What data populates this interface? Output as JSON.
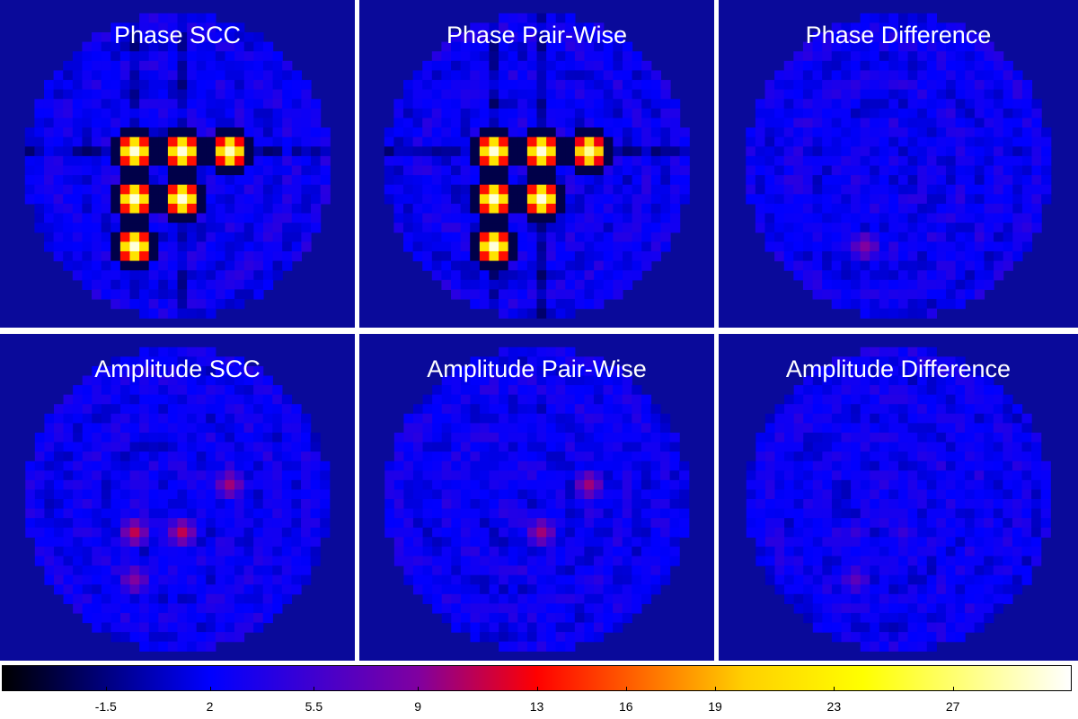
{
  "chart_data": {
    "type": "heatmap",
    "panels": [
      {
        "title": "Phase SCC",
        "row": 0,
        "col": 0,
        "hot_spots": [
          {
            "gx": 11,
            "gy": 14,
            "v": 30
          },
          {
            "gx": 16,
            "gy": 14,
            "v": 30
          },
          {
            "gx": 21,
            "gy": 14,
            "v": 29
          },
          {
            "gx": 11,
            "gy": 19,
            "v": 30
          },
          {
            "gx": 16,
            "gy": 19,
            "v": 30
          },
          {
            "gx": 11,
            "gy": 24,
            "v": 30
          }
        ],
        "dark_bands": true
      },
      {
        "title": "Phase Pair-Wise",
        "row": 0,
        "col": 1,
        "hot_spots": [
          {
            "gx": 11,
            "gy": 14,
            "v": 30
          },
          {
            "gx": 16,
            "gy": 14,
            "v": 30
          },
          {
            "gx": 21,
            "gy": 14,
            "v": 28
          },
          {
            "gx": 11,
            "gy": 19,
            "v": 30
          },
          {
            "gx": 16,
            "gy": 19,
            "v": 30
          },
          {
            "gx": 11,
            "gy": 24,
            "v": 30
          }
        ],
        "dark_bands": true
      },
      {
        "title": "Phase Difference",
        "row": 0,
        "col": 2,
        "hot_spots": [
          {
            "gx": 12,
            "gy": 24,
            "v": 9
          }
        ],
        "dark_bands": false
      },
      {
        "title": "Amplitude SCC",
        "row": 1,
        "col": 0,
        "hot_spots": [
          {
            "gx": 21,
            "gy": 14,
            "v": 10
          },
          {
            "gx": 11,
            "gy": 19,
            "v": 11
          },
          {
            "gx": 16,
            "gy": 19,
            "v": 11
          },
          {
            "gx": 11,
            "gy": 24,
            "v": 9
          }
        ],
        "dark_bands": false
      },
      {
        "title": "Amplitude Pair-Wise",
        "row": 1,
        "col": 1,
        "hot_spots": [
          {
            "gx": 21,
            "gy": 14,
            "v": 10
          },
          {
            "gx": 16,
            "gy": 19,
            "v": 10
          }
        ],
        "dark_bands": false
      },
      {
        "title": "Amplitude Difference",
        "row": 1,
        "col": 2,
        "hot_spots": [
          {
            "gx": 11,
            "gy": 19,
            "v": 5
          },
          {
            "gx": 16,
            "gy": 19,
            "v": 5
          },
          {
            "gx": 11,
            "gy": 24,
            "v": 7
          }
        ],
        "dark_bands": false
      }
    ],
    "grid_size": 32,
    "background_value": 2.2,
    "colormap": "heat",
    "colorbar": {
      "ticks": [
        "-1.5",
        "2",
        "5.5",
        "9",
        "13",
        "16",
        "19",
        "23",
        "27"
      ],
      "tick_values": [
        -1.5,
        2,
        5.5,
        9,
        13,
        16,
        19,
        23,
        27
      ],
      "range": [
        -5,
        31
      ],
      "stops": [
        {
          "v": -5,
          "color": "#000000"
        },
        {
          "v": 2,
          "color": "#0000ff"
        },
        {
          "v": 9,
          "color": "#8000a0"
        },
        {
          "v": 13,
          "color": "#ff0000"
        },
        {
          "v": 20,
          "color": "#ffd000"
        },
        {
          "v": 24,
          "color": "#ffff00"
        },
        {
          "v": 31,
          "color": "#ffffff"
        }
      ]
    }
  }
}
